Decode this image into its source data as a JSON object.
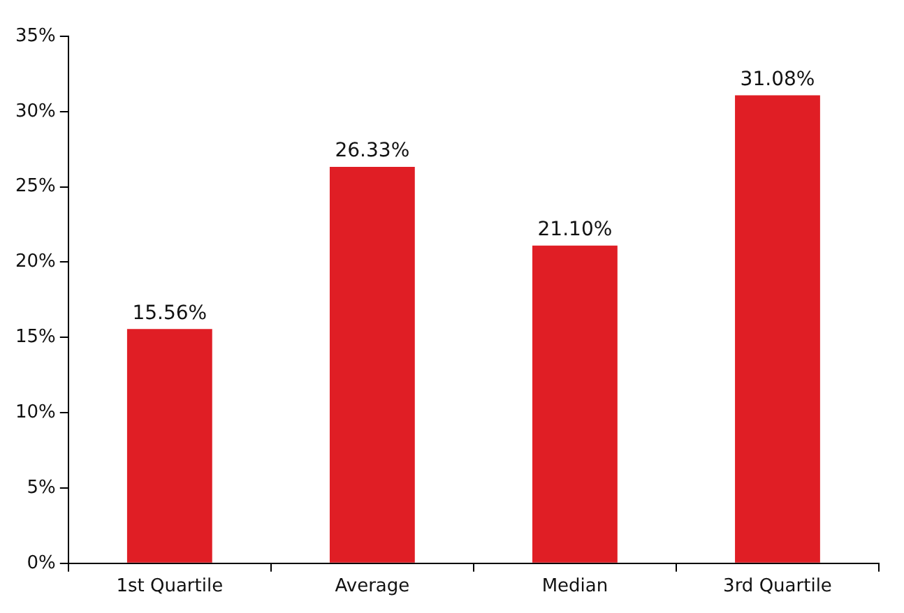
{
  "chart_data": {
    "type": "bar",
    "categories": [
      "1st Quartile",
      "Average",
      "Median",
      "3rd Quartile"
    ],
    "values": [
      15.56,
      26.33,
      21.1,
      31.08
    ],
    "value_labels": [
      "15.56%",
      "26.33%",
      "21.10%",
      "31.08%"
    ],
    "color": "#e01e25",
    "ylim": [
      0,
      35
    ],
    "yticks": [
      {
        "value": 0,
        "label": "0%"
      },
      {
        "value": 5,
        "label": "5%"
      },
      {
        "value": 10,
        "label": "10%"
      },
      {
        "value": 15,
        "label": "15%"
      },
      {
        "value": 20,
        "label": "20%"
      },
      {
        "value": 25,
        "label": "25%"
      },
      {
        "value": 30,
        "label": "30%"
      },
      {
        "value": 35,
        "label": "35%"
      }
    ],
    "grid": false,
    "legend": false
  }
}
